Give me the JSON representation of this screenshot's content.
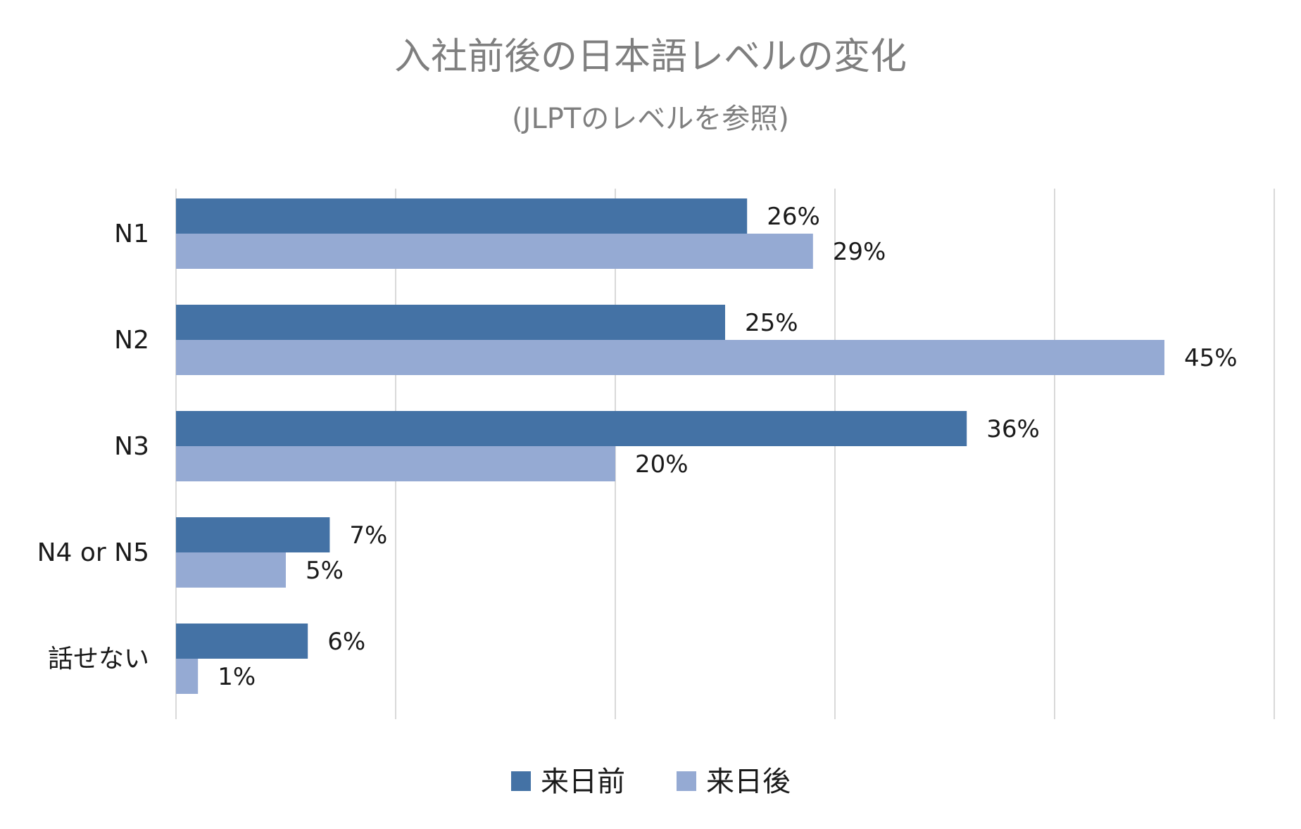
{
  "chart_data": {
    "type": "bar",
    "orientation": "horizontal",
    "title": "入社前後の日本語レベルの変化",
    "subtitle": "(JLPTのレベルを参照)",
    "categories": [
      "N1",
      "N2",
      "N3",
      "N4 or N5",
      "話せない"
    ],
    "series": [
      {
        "name": "来日前",
        "color": "#4472a5",
        "values": [
          26,
          25,
          36,
          7,
          6
        ],
        "labels": [
          "26%",
          "25%",
          "36%",
          "7%",
          "6%"
        ]
      },
      {
        "name": "来日後",
        "color": "#95aad3",
        "values": [
          29,
          45,
          20,
          5,
          1
        ],
        "labels": [
          "29%",
          "45%",
          "20%",
          "5%",
          "1%"
        ]
      }
    ],
    "xlim": [
      0,
      50
    ],
    "x_grid_step": 10,
    "grid": true,
    "x_tick_labels_visible": false,
    "legend_position": "bottom",
    "xlabel": "",
    "ylabel": ""
  }
}
